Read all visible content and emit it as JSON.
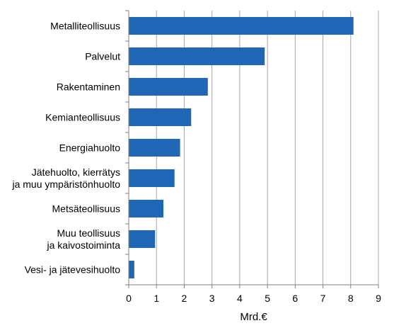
{
  "chart_data": {
    "type": "bar",
    "orientation": "horizontal",
    "categories": [
      [
        "Metalliteollisuus"
      ],
      [
        "Palvelut"
      ],
      [
        "Rakentaminen"
      ],
      [
        "Kemianteollisuus"
      ],
      [
        "Energiahuolto"
      ],
      [
        "Jätehuolto, kierrätys",
        "ja muu ympäristönhuolto"
      ],
      [
        "Metsäteollisuus"
      ],
      [
        "Muu teollisuus",
        "ja kaivostoiminta"
      ],
      [
        "Vesi- ja jätevesihuolto"
      ]
    ],
    "values": [
      8.1,
      4.9,
      2.85,
      2.25,
      1.85,
      1.65,
      1.25,
      0.95,
      0.2
    ],
    "xlabel": "Mrd.€",
    "ylabel": "",
    "xlim": [
      0,
      9
    ],
    "xticks": [
      0,
      1,
      2,
      3,
      4,
      5,
      6,
      7,
      8,
      9
    ],
    "grid": "vertical",
    "bar_color": "#1f66b5",
    "grid_color": "#a6a6a6",
    "axis_color": "#808080"
  }
}
